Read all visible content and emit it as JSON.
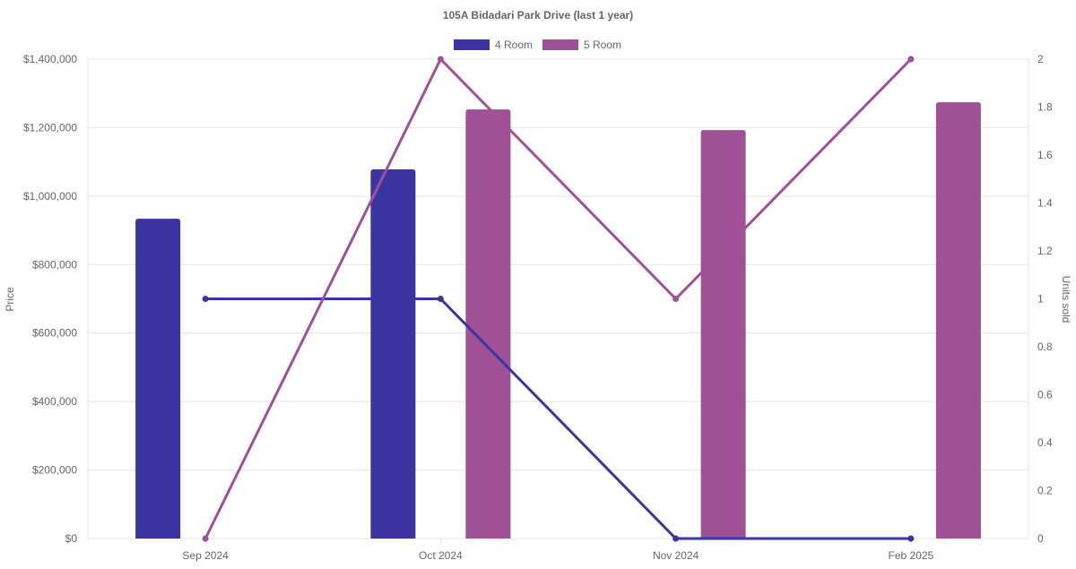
{
  "chart_data": {
    "type": "bar",
    "title": "105A Bidadari Park Drive (last 1 year)",
    "categories": [
      "Sep 2024",
      "Oct 2024",
      "Nov 2024",
      "Feb 2025"
    ],
    "ylabel": "Price",
    "y2label": "Units sold",
    "ylim": [
      0,
      1400000
    ],
    "y2lim": [
      0,
      2
    ],
    "yticks": [
      "$0",
      "$200,000",
      "$400,000",
      "$600,000",
      "$800,000",
      "$1,000,000",
      "$1,200,000",
      "$1,400,000"
    ],
    "y2ticks": [
      "0",
      "0.2",
      "0.4",
      "0.6",
      "0.8",
      "1",
      "1.2",
      "1.4",
      "1.6",
      "1.8",
      "2"
    ],
    "grid": true,
    "legend_position": "top",
    "series": [
      {
        "name": "4 Room",
        "color": "#3a35a0",
        "price": [
          934000,
          1078000,
          null,
          null
        ],
        "units": [
          1,
          1,
          0,
          0
        ]
      },
      {
        "name": "5 Room",
        "color": "#a05195",
        "price": [
          null,
          1253000,
          1193000,
          1274000
        ],
        "units": [
          0,
          2,
          1,
          2
        ]
      }
    ]
  }
}
